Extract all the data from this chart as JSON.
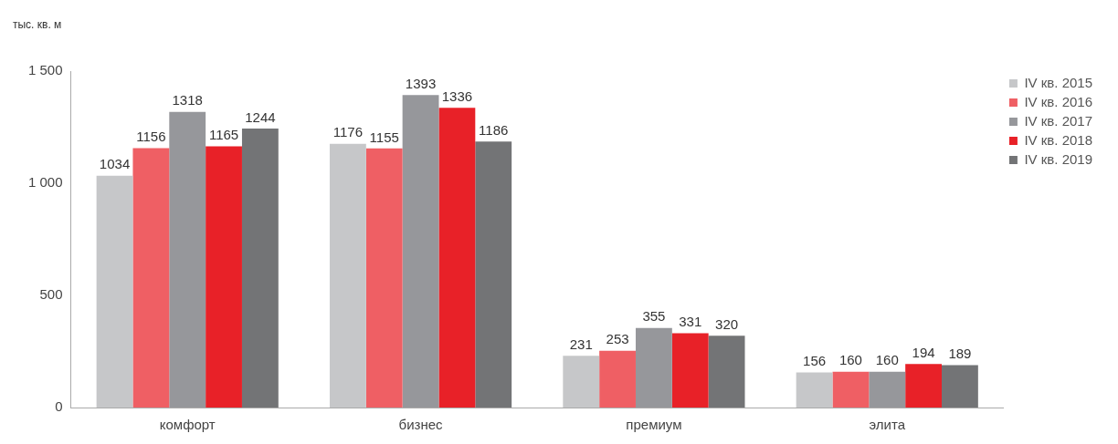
{
  "chart_data": {
    "type": "bar",
    "ylabel": "тыс. кв. м",
    "categories": [
      "комфорт",
      "бизнес",
      "премиум",
      "элита"
    ],
    "series": [
      {
        "name": "IV кв. 2015",
        "color": "#c6c7c9",
        "values": [
          1034,
          1176,
          231,
          156
        ]
      },
      {
        "name": "IV кв. 2016",
        "color": "#ef5f64",
        "values": [
          1156,
          1155,
          253,
          160
        ]
      },
      {
        "name": "IV кв. 2017",
        "color": "#96979b",
        "values": [
          1318,
          1393,
          355,
          160
        ]
      },
      {
        "name": "IV кв. 2018",
        "color": "#e82128",
        "values": [
          1165,
          1336,
          331,
          194
        ]
      },
      {
        "name": "IV кв. 2019",
        "color": "#737476",
        "values": [
          1244,
          1186,
          320,
          189
        ]
      }
    ],
    "ylim": [
      0,
      1500
    ],
    "yticks": [
      {
        "value": 0,
        "label": "0"
      },
      {
        "value": 500,
        "label": "500"
      },
      {
        "value": 1000,
        "label": "1 000"
      },
      {
        "value": 1500,
        "label": "1 500"
      }
    ],
    "grid": false,
    "legend": "top right",
    "data_labels": true
  }
}
